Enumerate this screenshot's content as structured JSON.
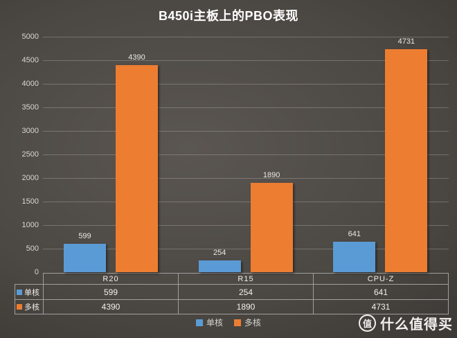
{
  "title": "B450i主板上的PBO表现",
  "chart_data": {
    "type": "bar",
    "title": "B450i主板上的PBO表现",
    "categories": [
      "R20",
      "R15",
      "CPU-Z"
    ],
    "series": [
      {
        "name": "单核",
        "key": "single",
        "color": "#5B9BD5",
        "values": [
          599,
          254,
          641
        ]
      },
      {
        "name": "多核",
        "key": "multi",
        "color": "#ED7D31",
        "values": [
          4390,
          1890,
          4731
        ]
      }
    ],
    "ylim": [
      0,
      5000
    ],
    "ytick_labels": [
      "5000",
      "4500",
      "4000",
      "3500",
      "3000",
      "2500",
      "2000",
      "1500",
      "1000",
      "500",
      "0"
    ],
    "grid": true,
    "data_labels": true,
    "legend_position": "bottom",
    "data_table_with_legend_keys": true
  },
  "legend": {
    "items": [
      {
        "label": "单核",
        "color": "#5B9BD5"
      },
      {
        "label": "多核",
        "color": "#ED7D31"
      }
    ]
  },
  "watermark": {
    "logo_char": "值",
    "text": "什么值得买"
  },
  "colors": {
    "bar_single": "#5B9BD5",
    "bar_multi": "#ED7D31",
    "grid_line": "#8d8983",
    "axis_text": "#d9d6d2",
    "table_border": "#a0a0a0",
    "title_text": "#ffffff"
  }
}
